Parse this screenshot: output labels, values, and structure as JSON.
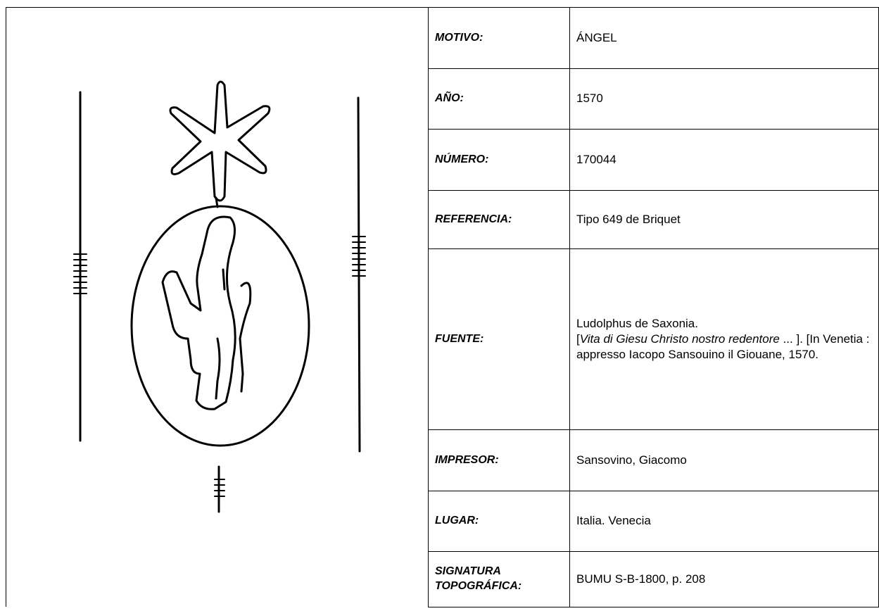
{
  "rows": [
    {
      "label": "MOTIVO:",
      "value": "ÁNGEL"
    },
    {
      "label": "AÑO:",
      "value": "1570"
    },
    {
      "label": "NÚMERO:",
      "value": "170044"
    },
    {
      "label": "REFERENCIA:",
      "value": "Tipo 649 de Briquet"
    },
    {
      "label": "FUENTE:",
      "value_parts": [
        "Ludolphus de Saxonia.",
        "[",
        "Vita di Giesu Christo nostro redentore",
        " ... ]. [In Venetia : appresso Iacopo Sansouino il Giouane, 1570."
      ]
    },
    {
      "label": "IMPRESOR:",
      "value": "Sansovino, Giacomo"
    },
    {
      "label": "LUGAR:",
      "value": "Italia. Venecia"
    },
    {
      "label": "SIGNATURA TOPOGRÁFICA:",
      "value": "BUMU S-B-1800, p. 208"
    }
  ]
}
